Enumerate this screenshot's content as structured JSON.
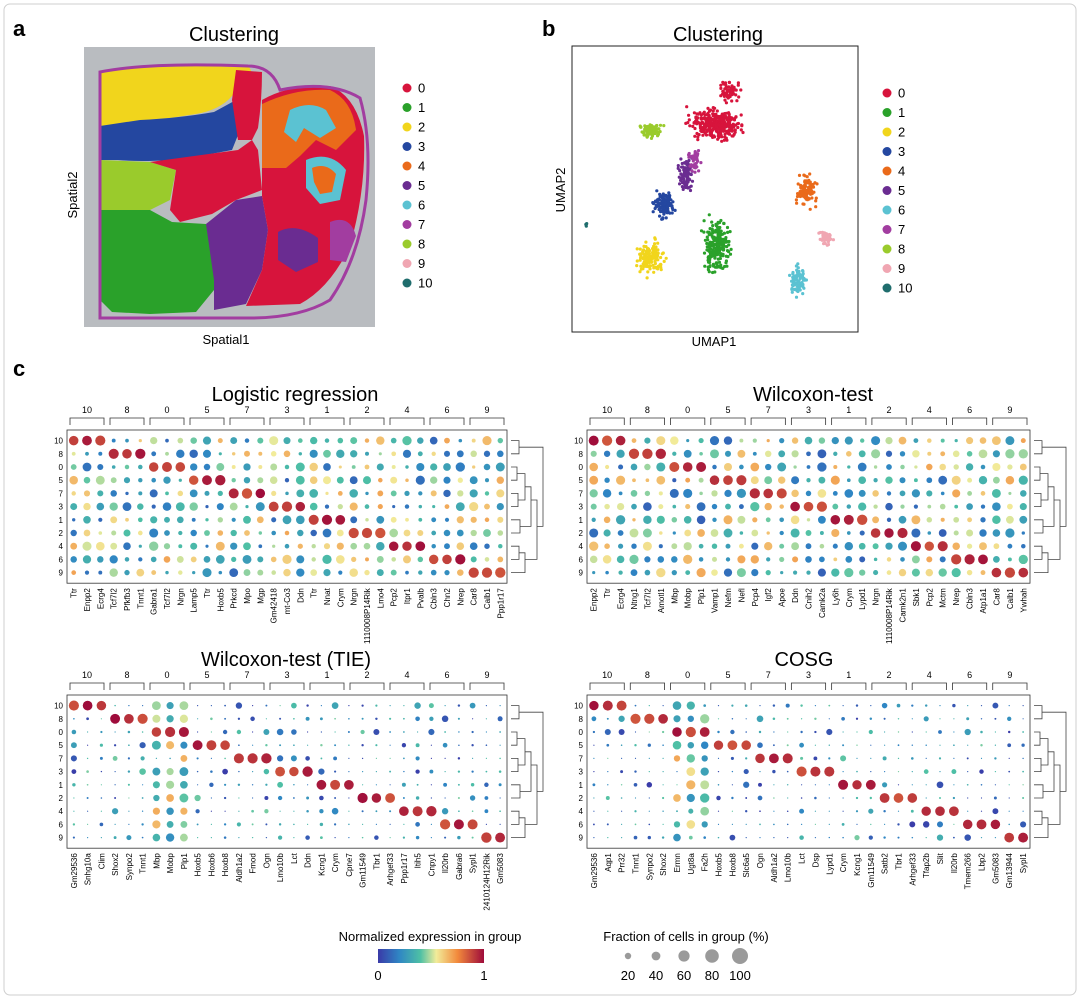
{
  "panels": {
    "a": "a",
    "b": "b",
    "c": "c"
  },
  "cluster_colors": {
    "0": "#d7143c",
    "1": "#2aa12a",
    "2": "#f1d51c",
    "3": "#2447a0",
    "4": "#ea6a1a",
    "5": "#6a2c91",
    "6": "#5bc2d2",
    "7": "#a23da0",
    "8": "#9acb2c",
    "9": "#f0a6b2",
    "10": "#1f6d6d"
  },
  "chart_data": [
    {
      "type": "scatter",
      "title": "Clustering",
      "xlabel": "Spatial1",
      "ylabel": "Spatial2",
      "legend": [
        "0",
        "1",
        "2",
        "3",
        "4",
        "5",
        "6",
        "7",
        "8",
        "9",
        "10"
      ],
      "legend_position": "right"
    },
    {
      "type": "scatter",
      "title": "Clustering",
      "xlabel": "UMAP1",
      "ylabel": "UMAP2",
      "legend": [
        "0",
        "1",
        "2",
        "3",
        "4",
        "5",
        "6",
        "7",
        "8",
        "9",
        "10"
      ],
      "legend_position": "right"
    },
    {
      "type": "dotplot",
      "title": "Logistic regression",
      "column_groups": [
        "10",
        "8",
        "0",
        "5",
        "7",
        "3",
        "1",
        "2",
        "4",
        "6",
        "9"
      ],
      "rows": [
        "10",
        "8",
        "0",
        "5",
        "7",
        "3",
        "1",
        "2",
        "4",
        "6",
        "9"
      ],
      "genes": [
        "Ttr",
        "Enpp2",
        "Ecrg4",
        "Tcf7l2",
        "Pfkfb3",
        "Tnnt1",
        "Gabra1",
        "Tcf7l2",
        "Nrgn",
        "Lamp5",
        "Ttr",
        "Hoxb5",
        "Prkcd",
        "Mpo",
        "Mgp",
        "Gm42418",
        "mt-Co3",
        "Ddn",
        "Ttr",
        "Nnat",
        "Crym",
        "Nrgn",
        "1110008P14Rik",
        "Lmo4",
        "Pcp2",
        "Itpr1",
        "Pvalb",
        "Cbln3",
        "Chn2",
        "Nrep",
        "Car8",
        "Calb1",
        "Ppp1r17"
      ]
    },
    {
      "type": "dotplot",
      "title": "Wilcoxon-test",
      "column_groups": [
        "10",
        "8",
        "0",
        "5",
        "7",
        "3",
        "1",
        "2",
        "4",
        "6",
        "9"
      ],
      "rows": [
        "10",
        "8",
        "0",
        "5",
        "7",
        "3",
        "1",
        "2",
        "4",
        "6",
        "9"
      ],
      "genes": [
        "Enpp2",
        "Ttr",
        "Ecrg4",
        "Ntng1",
        "Tcf7l2",
        "Amotl1",
        "Mbp",
        "Mobp",
        "Plp1",
        "Vamp1",
        "Nefm",
        "Nefl",
        "Pcp4",
        "Igf2",
        "Apoe",
        "Ddn",
        "Cnih2",
        "Camk2a",
        "Ly6h",
        "Crym",
        "Lypd1",
        "Nrgn",
        "1110008P14Rik",
        "Camk2n1",
        "Sbk1",
        "Pcp2",
        "Mctm",
        "Nrep",
        "Cbln3",
        "Atp1a1",
        "Car8",
        "Calb1",
        "Ywhah"
      ]
    },
    {
      "type": "dotplot",
      "title": "Wilcoxon-test (TIE)",
      "column_groups": [
        "10",
        "8",
        "0",
        "5",
        "7",
        "3",
        "1",
        "2",
        "4",
        "6",
        "9"
      ],
      "rows": [
        "10",
        "8",
        "0",
        "5",
        "7",
        "3",
        "1",
        "2",
        "4",
        "6",
        "9"
      ],
      "genes": [
        "Gm29536",
        "Snhg10a",
        "Clim",
        "Shox2",
        "Synpo2",
        "Tnnt1",
        "Mbp",
        "Mobp",
        "Plp1",
        "Hoxb5",
        "Hoxb6",
        "Hoxb8",
        "Aldh1a2",
        "Fmod",
        "Ogn",
        "Lmo10b",
        "Lct",
        "Ddn",
        "Kcng1",
        "Crym",
        "Cpne7",
        "Gm11549",
        "Tbr1",
        "Arhgef33",
        "Ppp1r17",
        "Itih5",
        "Cnpy1",
        "Il20rb",
        "Gabra6",
        "Sypl1",
        "2410124H12Rik",
        "Gm5083"
      ]
    },
    {
      "type": "dotplot",
      "title": "COSG",
      "column_groups": [
        "10",
        "8",
        "0",
        "5",
        "7",
        "3",
        "1",
        "2",
        "4",
        "6",
        "9"
      ],
      "rows": [
        "10",
        "8",
        "0",
        "5",
        "7",
        "3",
        "1",
        "2",
        "4",
        "6",
        "9"
      ],
      "genes": [
        "Gm29536",
        "Aqp1",
        "Prr32",
        "Tnnt1",
        "Synpo2",
        "Shox2",
        "Ermn",
        "Ugt8a",
        "Fa2h",
        "Hoxb5",
        "Hoxb8",
        "Slc6a5",
        "Ogn",
        "Aldh1a2",
        "Lmo10b",
        "Lct",
        "Dsp",
        "Lypd1",
        "Crym",
        "Kcng1",
        "Gm11549",
        "Satb2",
        "Tbr1",
        "Arhgef33",
        "Tfap2b",
        "Slit",
        "Il20rb",
        "Tmem266",
        "Lbp2",
        "Gm5083",
        "Gm13944",
        "Sypl1"
      ]
    }
  ],
  "legend": {
    "expression": {
      "title": "Normalized expression in group",
      "min": "0",
      "max": "1"
    },
    "fraction": {
      "title": "Fraction of cells in group (%)",
      "values": [
        "20",
        "40",
        "60",
        "80",
        "100"
      ]
    }
  }
}
